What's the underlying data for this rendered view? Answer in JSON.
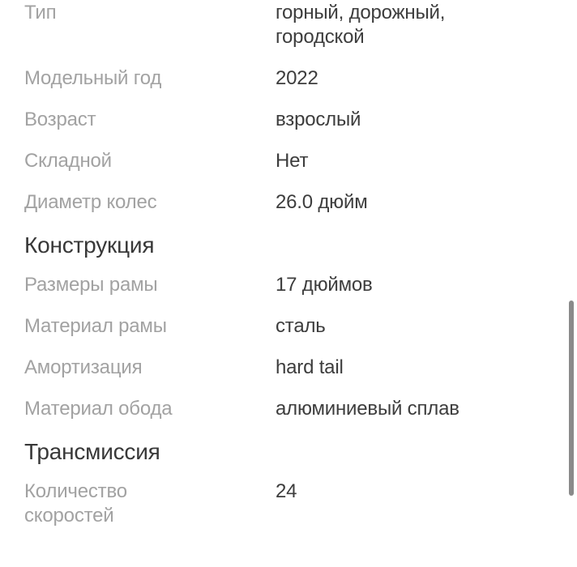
{
  "colors": {
    "background": "#ffffff",
    "label_text": "#a2a2a2",
    "value_text": "#3d3d3d",
    "header_text": "#383838",
    "scrollbar": "#8a8a8a"
  },
  "specs": {
    "sections": [
      {
        "rows": [
          {
            "label": "Тип",
            "value": "горный, дорожный, городской"
          },
          {
            "label": "Модельный год",
            "value": "2022"
          },
          {
            "label": "Возраст",
            "value": "взрослый"
          },
          {
            "label": "Складной",
            "value": "Нет"
          },
          {
            "label": "Диаметр колес",
            "value": "26.0 дюйм"
          }
        ]
      },
      {
        "header": "Конструкция",
        "rows": [
          {
            "label": "Размеры рамы",
            "value": "17 дюймов"
          },
          {
            "label": "Материал рамы",
            "value": "сталь"
          },
          {
            "label": "Амортизация",
            "value": "hard tail"
          },
          {
            "label": "Материал обода",
            "value": "алюминиевый сплав"
          }
        ]
      },
      {
        "header": "Трансмиссия",
        "rows": [
          {
            "label": "Количество скоростей",
            "value": "24"
          }
        ]
      }
    ]
  }
}
